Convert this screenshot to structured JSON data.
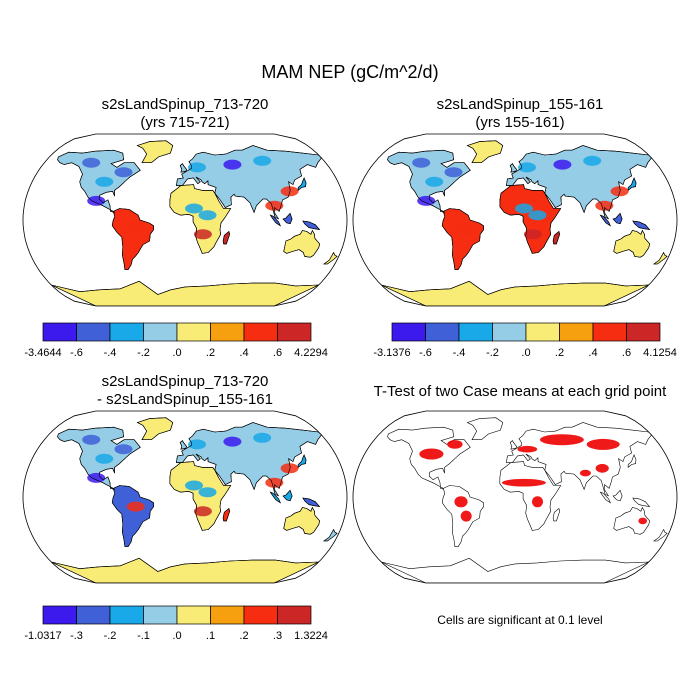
{
  "figure": {
    "title": "MAM NEP (gC/m^2/d)",
    "note": "Cells are significant at 0.1 level"
  },
  "chart_data": [
    {
      "type": "map",
      "title": "s2sLandSpinup_713-720",
      "subtitle": "(yrs 715-721)",
      "colorbar": {
        "levels": [
          "-3.4644",
          "-.6",
          "-.4",
          "-.2",
          ".0",
          ".2",
          ".4",
          ".6",
          "4.2294"
        ],
        "colors": [
          "#3c1aee",
          "#4060d8",
          "#19a8e8",
          "#96cde6",
          "#f9ec76",
          "#f6a010",
          "#f62d10",
          "#cc2626"
        ]
      }
    },
    {
      "type": "map",
      "title": "s2sLandSpinup_155-161",
      "subtitle": "(yrs 155-161)",
      "colorbar": {
        "levels": [
          "-3.1376",
          "-.6",
          "-.4",
          "-.2",
          ".0",
          ".2",
          ".4",
          ".6",
          "4.1254"
        ],
        "colors": [
          "#3c1aee",
          "#4060d8",
          "#19a8e8",
          "#96cde6",
          "#f9ec76",
          "#f6a010",
          "#f62d10",
          "#cc2626"
        ]
      }
    },
    {
      "type": "map",
      "title": "s2sLandSpinup_713-720",
      "subtitle": "- s2sLandSpinup_155-161",
      "colorbar": {
        "levels": [
          "-1.0317",
          "-.3",
          "-.2",
          "-.1",
          ".0",
          ".1",
          ".2",
          ".3",
          "1.3224"
        ],
        "colors": [
          "#3c1aee",
          "#4060d8",
          "#19a8e8",
          "#96cde6",
          "#f9ec76",
          "#f6a010",
          "#f62d10",
          "#cc2626"
        ]
      }
    },
    {
      "type": "map",
      "title": "T-Test of two Case means at each grid point",
      "significance_color": "#ee0000"
    }
  ]
}
